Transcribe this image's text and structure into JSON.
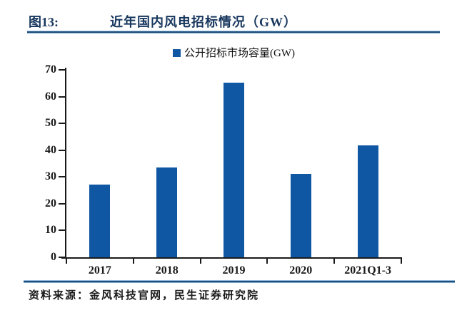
{
  "header": {
    "figure_label": "图13:",
    "title": "近年国内风电招标情况（GW）"
  },
  "footer": {
    "source": "资料来源：金风科技官网，民生证券研究院"
  },
  "colors": {
    "bar": "#0F57A2",
    "title_text": "#17365D",
    "divider_blue": "#1F4E79",
    "axis": "#1A1A1A"
  },
  "chart_data": {
    "type": "bar",
    "title": "近年国内风电招标情况（GW）",
    "legend": "公开招标市场容量(GW)",
    "legend_position": "top-center",
    "categories": [
      "2017",
      "2018",
      "2019",
      "2020",
      "2021Q1-3"
    ],
    "values": [
      27.2,
      33.5,
      65.2,
      31.1,
      41.9
    ],
    "unit": "GW",
    "xlabel": "",
    "ylabel": "",
    "ylim": [
      0,
      70
    ],
    "y_ticks": [
      0,
      10,
      20,
      30,
      40,
      50,
      60,
      70
    ],
    "grid": false
  }
}
